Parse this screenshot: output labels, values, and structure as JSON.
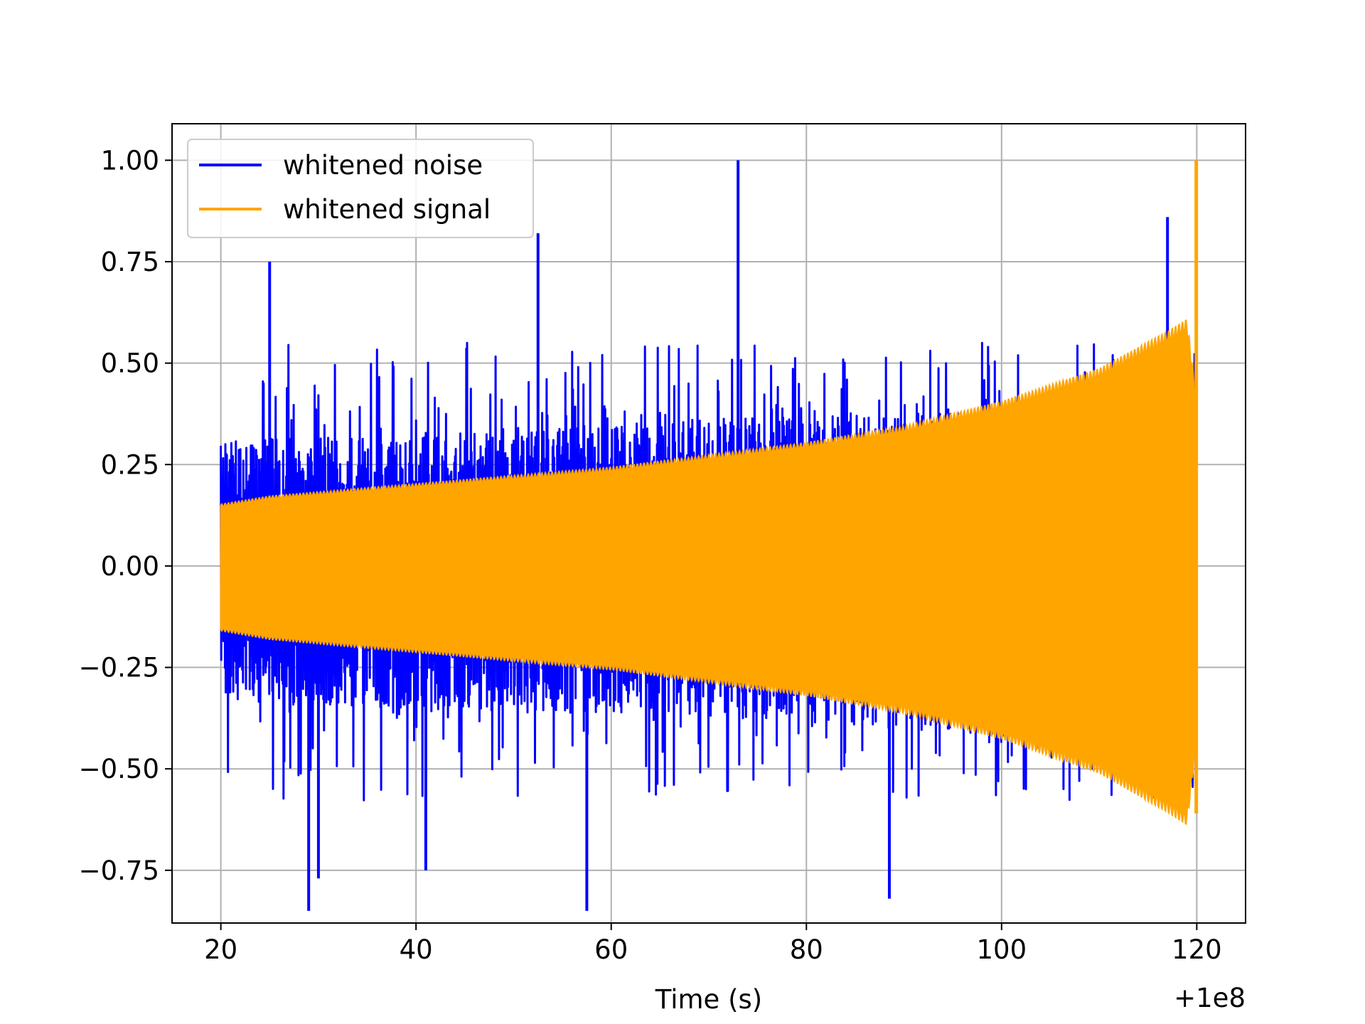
{
  "chart_data": {
    "type": "line",
    "title": "",
    "xlabel": "Time (s)",
    "ylabel": "",
    "x_offset_label": "+1e8",
    "xlim": [
      15,
      125
    ],
    "ylim": [
      -0.88,
      1.09
    ],
    "x_ticks": [
      20,
      40,
      60,
      80,
      100,
      120
    ],
    "x_tick_labels": [
      "20",
      "40",
      "60",
      "80",
      "100",
      "120"
    ],
    "y_ticks": [
      1.0,
      0.75,
      0.5,
      0.25,
      0.0,
      -0.25,
      -0.5,
      -0.75
    ],
    "y_tick_labels": [
      "1.00",
      "0.75",
      "0.50",
      "0.25",
      "0.00",
      "−0.25",
      "−0.50",
      "−0.75"
    ],
    "grid": true,
    "legend_position": "top-left",
    "series": [
      {
        "name": "whitened noise",
        "color": "#0000ff",
        "x_range": [
          20,
          120
        ],
        "peak_max": 1.0,
        "peak_min": -0.85,
        "typical_upper": [
          [
            20,
            0.28
          ],
          [
            40,
            0.3
          ],
          [
            60,
            0.32
          ],
          [
            80,
            0.34
          ],
          [
            100,
            0.36
          ],
          [
            120,
            0.4
          ]
        ],
        "typical_lower": [
          [
            20,
            -0.3
          ],
          [
            40,
            -0.32
          ],
          [
            60,
            -0.33
          ],
          [
            80,
            -0.35
          ],
          [
            100,
            -0.38
          ],
          [
            120,
            -0.45
          ]
        ],
        "spikes": [
          [
            25,
            0.75
          ],
          [
            29,
            -0.85
          ],
          [
            30,
            -0.77
          ],
          [
            41,
            -0.75
          ],
          [
            52.5,
            0.82
          ],
          [
            57.5,
            -0.85
          ],
          [
            73,
            1.0
          ],
          [
            88.5,
            -0.82
          ],
          [
            117,
            0.86
          ]
        ]
      },
      {
        "name": "whitened signal",
        "color": "#ffa500",
        "x_range": [
          20,
          120
        ],
        "envelope": [
          [
            20,
            0.15
          ],
          [
            25,
            0.17
          ],
          [
            30,
            0.18
          ],
          [
            40,
            0.2
          ],
          [
            50,
            0.22
          ],
          [
            60,
            0.24
          ],
          [
            70,
            0.27
          ],
          [
            80,
            0.3
          ],
          [
            90,
            0.34
          ],
          [
            100,
            0.4
          ],
          [
            110,
            0.48
          ],
          [
            117,
            0.57
          ],
          [
            119,
            0.6
          ],
          [
            120,
            0.4
          ]
        ],
        "peak_max": 1.0,
        "peak_min": -0.61
      }
    ]
  }
}
